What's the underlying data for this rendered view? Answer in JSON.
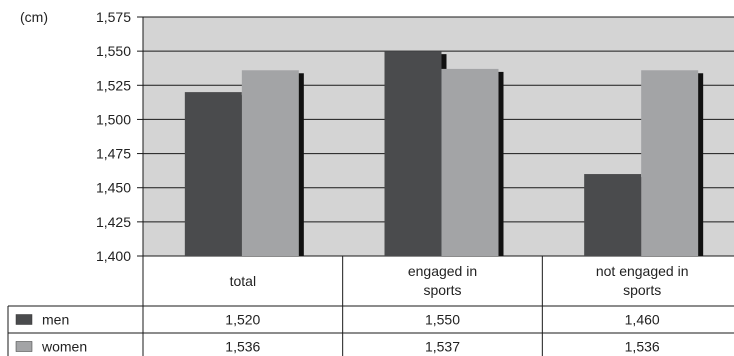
{
  "chart_data": {
    "type": "bar",
    "unit_label": "(cm)",
    "title": "",
    "xlabel": "",
    "ylabel": "",
    "ylim": [
      1400,
      1575
    ],
    "yticks": [
      1400,
      1425,
      1450,
      1475,
      1500,
      1525,
      1550,
      1575
    ],
    "ytick_labels": [
      "1,400",
      "1,425",
      "1,450",
      "1,475",
      "1,500",
      "1,525",
      "1,550",
      "1,575"
    ],
    "grid": true,
    "legend": "data-table-left",
    "categories": [
      [
        "total"
      ],
      [
        "engaged in",
        "sports"
      ],
      [
        "not engaged in",
        "sports"
      ]
    ],
    "series": [
      {
        "name": "men",
        "color": "#4a4b4d",
        "values": [
          1520,
          1550,
          1460
        ],
        "labels": [
          "1,520",
          "1,550",
          "1,460"
        ]
      },
      {
        "name": "women",
        "color": "#a3a4a6",
        "values": [
          1536,
          1537,
          1536
        ],
        "labels": [
          "1,536",
          "1,537",
          "1,536"
        ]
      }
    ],
    "plot_background": "#d4d4d4",
    "shadow_color": "#111111"
  }
}
